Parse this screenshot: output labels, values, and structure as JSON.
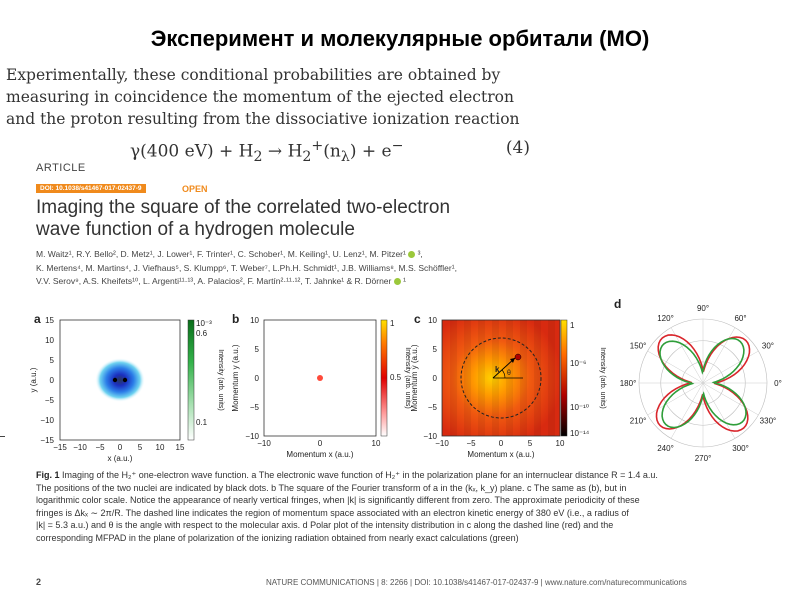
{
  "slide": {
    "title": "Эксперимент и молекулярные орбитали (МО)"
  },
  "intro": {
    "lines": [
      "Experimentally, these conditional probabilities are obtained by",
      "measuring in coincidence the momentum of the ejected electron",
      "and the proton resulting from the dissociative ionization reaction"
    ],
    "equation_lhs": "γ(400 eV) + H",
    "equation_rhs": " → H",
    "equation_tail": "(n",
    "equation_end": ") + e",
    "equation_number": "(4)"
  },
  "article": {
    "label": "ARTICLE",
    "doi_badge": "DOI: 10.1038/s41467-017-02437-9",
    "open_badge": "OPEN",
    "title_line1": "Imaging the square of the correlated two-electron",
    "title_line2": "wave function of a hydrogen molecule",
    "authors_line1": "M. Waitz¹, R.Y. Bello², D. Metz¹, J. Lower¹, F. Trinter¹, C. Schober¹, M. Keiling¹, U. Lenz¹, M. Pitzer¹",
    "authors_line1_tail": " ³,",
    "authors_line2": "K. Mertens⁴, M. Martins⁴, J. Viefhaus⁵, S. Klumpp⁶, T. Weber⁷, L.Ph.H. Schmidt¹, J.B. Williams⁸, M.S. Schöffler¹,",
    "authors_line3": "V.V. Serov⁹, A.S. Kheifets¹⁰, L. Argenti¹¹·¹³, A. Palacios², F. Martín²·¹¹·¹², T. Jahnke¹ & R. Dörner",
    "authors_line3_tail": " ¹"
  },
  "figure": {
    "panels": [
      "a",
      "b",
      "c",
      "d"
    ],
    "a": {
      "ylabel": "y (a.u.)",
      "xlabel": "x (a.u.)",
      "yticks": [
        "15",
        "10",
        "5",
        "0",
        "−5",
        "−10",
        "−15"
      ],
      "xticks": [
        "−15",
        "−5",
        "0",
        "5",
        "10",
        "15"
      ],
      "xticks_left": "−10",
      "colorbar_ticks": [
        "10⁻³",
        "0.6",
        "0.1"
      ],
      "colorbar_label": "Intensity (arb. units)"
    },
    "b": {
      "ylabel": "Momentum y (a.u.)",
      "xlabel": "Momentum x (a.u.)",
      "yticks": [
        "10",
        "5",
        "0",
        "−5",
        "−10"
      ],
      "xticks": [
        "−10",
        "0",
        "10"
      ],
      "colorbar_ticks": [
        "1",
        "0.5"
      ],
      "colorbar_label": "Intensity (arb. units)"
    },
    "c": {
      "ylabel": "Momentum y (a.u.)",
      "xlabel": "Momentum x (a.u.)",
      "yticks": [
        "10",
        "5",
        "0",
        "−5",
        "−10"
      ],
      "xticks": [
        "−10",
        "−5",
        "0",
        "5",
        "10"
      ],
      "colorbar_ticks": [
        "1",
        "10⁻⁶",
        "10⁻¹⁰",
        "10⁻¹⁴"
      ],
      "colorbar_label": "Intensity (arb. units)",
      "k_label": "k",
      "theta_label": "θ"
    },
    "d": {
      "angles": [
        "90°",
        "60°",
        "30°",
        "0°",
        "330°",
        "300°",
        "270°",
        "240°",
        "210°",
        "180°",
        "150°",
        "120°"
      ]
    }
  },
  "caption": {
    "fig_label": "Fig. 1",
    "line1": " Imaging of the H₂⁺ one-electron wave function. a The electronic wave function of H₂⁺ in the polarization plane for an internuclear distance R = 1.4 a.u.",
    "line2": "The positions of the two nuclei are indicated by black dots. b The square of the Fourier transform of a in the (kₓ, k_y) plane. c The same as (b), but in",
    "line3": "logarithmic color scale. Notice the appearance of nearly vertical fringes, when |k| is significantly different from zero. The approximate periodicity of these",
    "line4": "fringes is Δkₓ ∼ 2π/R. The dashed line indicates the region of momentum space associated with an electron kinetic energy of 380 eV (i.e., a radius of",
    "line5": "|k| = 5.3 a.u.) and θ is the angle with respect to the molecular axis. d Polar plot of the intensity distribution in c along the dashed line (red) and the",
    "line6": "corresponding MFPAD in the plane of polarization of the ionizing radiation obtained from nearly exact calculations (green)"
  },
  "footer": {
    "page": "2",
    "journal": "NATURE COMMUNICATIONS | 8: 2266",
    "doi": " | DOI: 10.1038/s41467-017-02437-9 | www.nature.com/naturecommunications"
  },
  "colors": {
    "accent": "#f08a1c",
    "curve_red": "#d9262c",
    "curve_green": "#2f9e3a"
  }
}
